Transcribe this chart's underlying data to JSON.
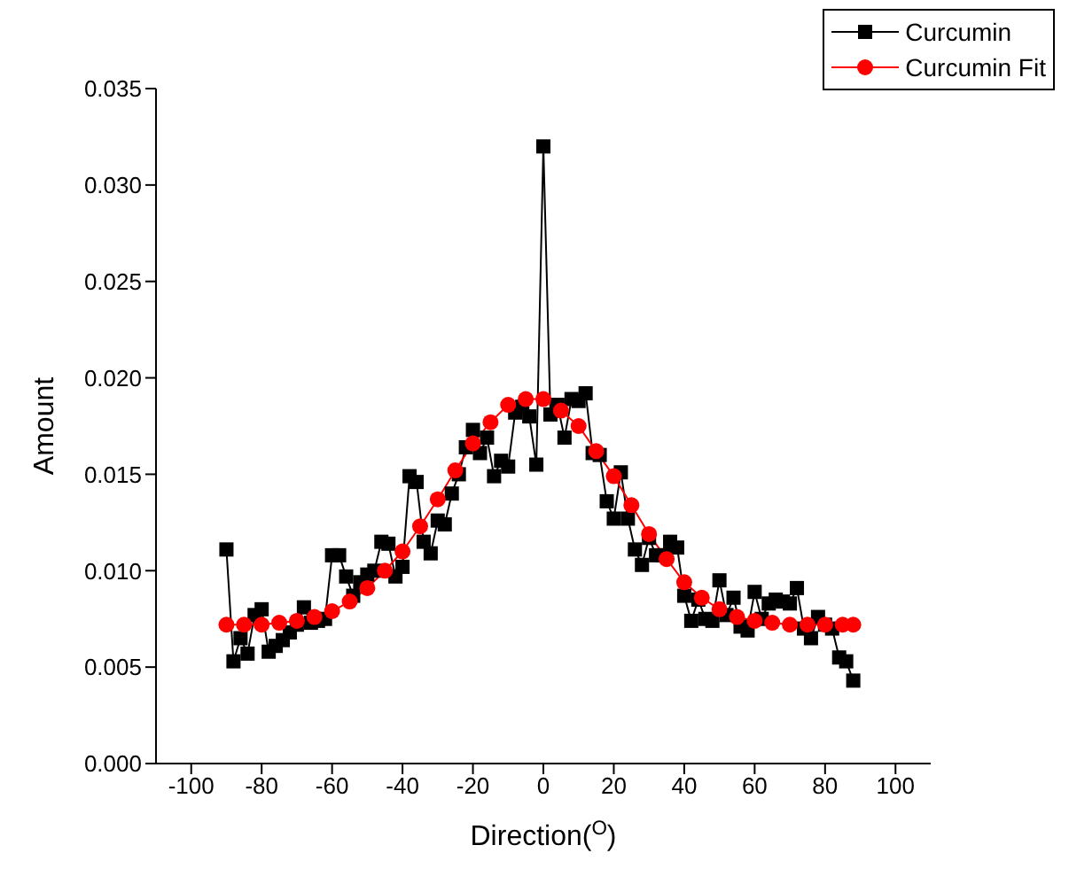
{
  "chart_data": {
    "type": "line",
    "xlabel": "Direction($^{O}$)",
    "ylabel": "Amount",
    "xlim": [
      -110,
      110
    ],
    "xticks": [
      -100,
      -80,
      -60,
      -40,
      -20,
      0,
      20,
      40,
      60,
      80,
      100
    ],
    "ylim": [
      0,
      0.035
    ],
    "yticks": [
      {
        "value": 0,
        "label": "0.000"
      },
      {
        "value": 0.005,
        "label": "0.005"
      },
      {
        "value": 0.01,
        "label": "0.010"
      },
      {
        "value": 0.015,
        "label": "0.015"
      },
      {
        "value": 0.02,
        "label": "0.020"
      },
      {
        "value": 0.025,
        "label": "0.025"
      },
      {
        "value": 0.03,
        "label": "0.030"
      },
      {
        "value": 0.035,
        "label": "0.035"
      }
    ],
    "legend": "top right",
    "series": [
      {
        "name": "Curcumin",
        "color": "#000000",
        "marker": "square",
        "x": [
          -90,
          -88,
          -86,
          -84,
          -82,
          -80,
          -78,
          -76,
          -74,
          -72,
          -70,
          -68,
          -66,
          -64,
          -62,
          -60,
          -58,
          -56,
          -54,
          -52,
          -50,
          -48,
          -46,
          -44,
          -42,
          -40,
          -38,
          -36,
          -34,
          -32,
          -30,
          -28,
          -26,
          -24,
          -22,
          -20,
          -18,
          -16,
          -14,
          -12,
          -10,
          -8,
          -6,
          -4,
          -2,
          0,
          2,
          4,
          6,
          8,
          10,
          12,
          14,
          16,
          18,
          20,
          22,
          24,
          26,
          28,
          30,
          32,
          34,
          36,
          38,
          40,
          42,
          44,
          46,
          48,
          50,
          52,
          54,
          56,
          58,
          60,
          62,
          64,
          66,
          68,
          70,
          72,
          74,
          76,
          78,
          80,
          82,
          84,
          86,
          88
        ],
        "values": [
          0.0111,
          0.0053,
          0.0065,
          0.0057,
          0.0077,
          0.008,
          0.0058,
          0.0061,
          0.0064,
          0.0068,
          0.0072,
          0.0081,
          0.0073,
          0.0074,
          0.0075,
          0.0108,
          0.0108,
          0.0097,
          0.0087,
          0.0094,
          0.0098,
          0.01,
          0.0115,
          0.0114,
          0.0097,
          0.0102,
          0.0149,
          0.0146,
          0.0115,
          0.0109,
          0.0126,
          0.0124,
          0.014,
          0.015,
          0.0164,
          0.0173,
          0.0161,
          0.0169,
          0.0149,
          0.0157,
          0.0154,
          0.0182,
          0.0185,
          0.018,
          0.0155,
          0.032,
          0.0181,
          0.0186,
          0.0169,
          0.0189,
          0.0188,
          0.0192,
          0.0161,
          0.016,
          0.0136,
          0.0127,
          0.0151,
          0.0127,
          0.0111,
          0.0103,
          0.0117,
          0.0108,
          0.0108,
          0.0115,
          0.0112,
          0.0087,
          0.0074,
          0.0085,
          0.0075,
          0.0074,
          0.0095,
          0.0077,
          0.0086,
          0.0071,
          0.0069,
          0.0089,
          0.0075,
          0.0083,
          0.0085,
          0.0084,
          0.0083,
          0.0091,
          0.007,
          0.0065,
          0.0076,
          0.0072,
          0.007,
          0.0055,
          0.0053,
          0.0043
        ]
      },
      {
        "name": "Curcumin Fit",
        "color": "#ff0000",
        "marker": "circle",
        "x": [
          -90,
          -85,
          -80,
          -75,
          -70,
          -65,
          -60,
          -55,
          -50,
          -45,
          -40,
          -35,
          -30,
          -25,
          -20,
          -15,
          -10,
          -5,
          0,
          5,
          10,
          15,
          20,
          25,
          30,
          35,
          40,
          45,
          50,
          55,
          60,
          65,
          70,
          75,
          80,
          85,
          88
        ],
        "values": [
          0.0072,
          0.0072,
          0.0072,
          0.0073,
          0.0074,
          0.0076,
          0.0079,
          0.0084,
          0.0091,
          0.01,
          0.011,
          0.0123,
          0.0137,
          0.0152,
          0.0166,
          0.0177,
          0.0186,
          0.0189,
          0.0189,
          0.0183,
          0.0175,
          0.0162,
          0.0149,
          0.0134,
          0.0119,
          0.0106,
          0.0094,
          0.0086,
          0.008,
          0.0076,
          0.0074,
          0.0073,
          0.0072,
          0.0072,
          0.0072,
          0.0072,
          0.0072
        ]
      }
    ]
  }
}
